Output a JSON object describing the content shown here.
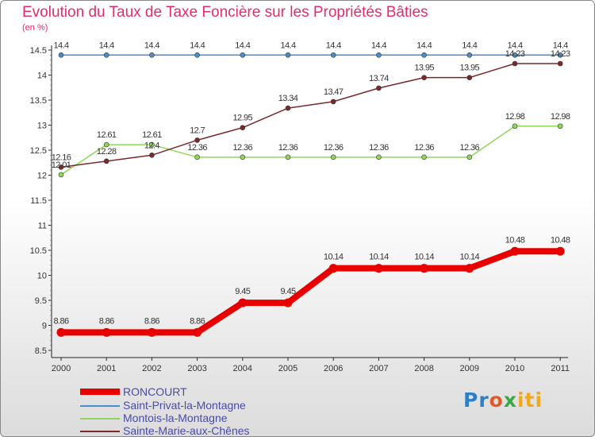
{
  "chart_data": {
    "type": "line",
    "title": "Evolution du Taux de Taxe Foncière sur les Propriétés Bâties",
    "ylabel": "(en %)",
    "xlabel": "",
    "ylim": [
      8.5,
      14.5
    ],
    "yticks": [
      "8.5",
      "9",
      "9.5",
      "10",
      "10.5",
      "11",
      "11.5",
      "12",
      "12.5",
      "13",
      "13.5",
      "14",
      "14.5"
    ],
    "x": [
      "2000",
      "2001",
      "2002",
      "2003",
      "2004",
      "2005",
      "2006",
      "2007",
      "2008",
      "2009",
      "2010",
      "2011"
    ],
    "series": [
      {
        "name": "RONCOURT",
        "color": "#e80000",
        "values": [
          8.86,
          8.86,
          8.86,
          8.86,
          9.45,
          9.45,
          10.14,
          10.14,
          10.14,
          10.14,
          10.48,
          10.48
        ],
        "labels": [
          "8.86",
          "8.86",
          "8.86",
          "8.86",
          "9.45",
          "9.45",
          "10.14",
          "10.14",
          "10.14",
          "10.14",
          "10.48",
          "10.48"
        ]
      },
      {
        "name": "Saint-Privat-la-Montagne",
        "color": "#4a8ec8",
        "values": [
          14.4,
          14.4,
          14.4,
          14.4,
          14.4,
          14.4,
          14.4,
          14.4,
          14.4,
          14.4,
          14.4,
          14.4
        ],
        "labels": [
          "14.4",
          "14.4",
          "14.4",
          "14.4",
          "14.4",
          "14.4",
          "14.4",
          "14.4",
          "14.4",
          "14.4",
          "14.4",
          "14.4"
        ]
      },
      {
        "name": "Montois-la-Montagne",
        "color": "#8fd65a",
        "values": [
          12.01,
          12.61,
          12.61,
          12.36,
          12.36,
          12.36,
          12.36,
          12.36,
          12.36,
          12.36,
          12.98,
          12.98
        ],
        "labels": [
          "12.01",
          "12.61",
          "12.61",
          "12.36",
          "12.36",
          "12.36",
          "12.36",
          "12.36",
          "12.36",
          "12.36",
          "12.98",
          "12.98"
        ]
      },
      {
        "name": "Sainte-Marie-aux-Chênes",
        "color": "#7a2a2a",
        "values": [
          12.16,
          12.28,
          12.4,
          12.7,
          12.95,
          13.34,
          13.47,
          13.74,
          13.95,
          13.95,
          14.23,
          14.23
        ],
        "labels": [
          "12.16",
          "12.28",
          "12.4",
          "12.7",
          "12.95",
          "13.34",
          "13.47",
          "13.74",
          "13.95",
          "13.95",
          "14.23",
          "14.23"
        ]
      }
    ]
  },
  "brand": {
    "part1": "Pr",
    "part2": "o",
    "part3": "x",
    "part4": "iti"
  }
}
